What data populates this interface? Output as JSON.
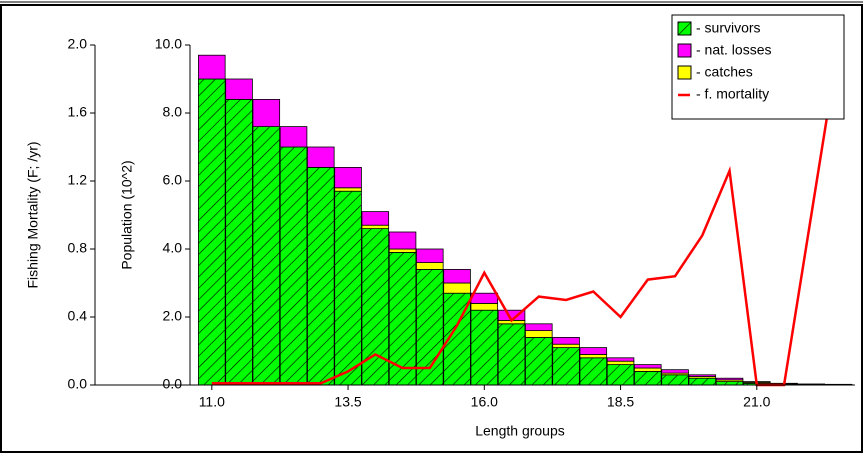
{
  "chart_data": {
    "type": "stacked-bar-line",
    "xlabel": "Length groups",
    "ylabel": "Population (10^2)",
    "y2label": "Fishing Mortality (F; /yr)",
    "x": [
      11.0,
      11.5,
      12.0,
      12.5,
      13.0,
      13.5,
      14.0,
      14.5,
      15.0,
      15.5,
      16.0,
      16.5,
      17.0,
      17.5,
      18.0,
      18.5,
      19.0,
      19.5,
      20.0,
      20.5,
      21.0,
      21.5,
      22.0,
      22.5
    ],
    "xlim": [
      10.6,
      22.8
    ],
    "xticks": [
      {
        "value": 11,
        "label": "11.0"
      },
      {
        "value": 13.5,
        "label": "13.5"
      },
      {
        "value": 16,
        "label": "16.0"
      },
      {
        "value": 18.5,
        "label": "18.5"
      },
      {
        "value": 21,
        "label": "21.0"
      }
    ],
    "ylim": [
      0,
      10
    ],
    "yticks": [
      {
        "value": 0,
        "label": "0.0"
      },
      {
        "value": 2,
        "label": "2.0"
      },
      {
        "value": 4,
        "label": "4.0"
      },
      {
        "value": 6,
        "label": "6.0"
      },
      {
        "value": 8,
        "label": "8.0"
      },
      {
        "value": 10,
        "label": "10.0"
      }
    ],
    "y2lim": [
      0,
      2
    ],
    "y2ticks": [
      {
        "value": 0,
        "label": "0.0"
      },
      {
        "value": 0.4,
        "label": "0.4"
      },
      {
        "value": 0.8,
        "label": "0.8"
      },
      {
        "value": 1.2,
        "label": "1.2"
      },
      {
        "value": 1.6,
        "label": "1.6"
      },
      {
        "value": 2,
        "label": "2.0"
      }
    ],
    "legend": "top-right",
    "series": [
      {
        "name": "- survivors",
        "color": "#00ff00",
        "hatch": true,
        "values": [
          9.0,
          8.4,
          7.6,
          7.0,
          6.4,
          5.7,
          4.6,
          3.9,
          3.4,
          2.7,
          2.2,
          1.8,
          1.4,
          1.1,
          0.8,
          0.6,
          0.4,
          0.3,
          0.2,
          0.1,
          0.05,
          0.03,
          0.02,
          0.01
        ]
      },
      {
        "name": "- catches",
        "color": "#ffff00",
        "values": [
          0,
          0,
          0,
          0,
          0,
          0.1,
          0.1,
          0.1,
          0.2,
          0.3,
          0.2,
          0.1,
          0.2,
          0.1,
          0.1,
          0.1,
          0.1,
          0.05,
          0.05,
          0.05,
          0.03,
          0,
          0,
          0
        ]
      },
      {
        "name": "- nat. losses",
        "color": "#ff00ff",
        "values": [
          0.7,
          0.6,
          0.8,
          0.6,
          0.6,
          0.6,
          0.4,
          0.5,
          0.4,
          0.4,
          0.3,
          0.3,
          0.2,
          0.2,
          0.2,
          0.1,
          0.1,
          0.1,
          0.05,
          0.05,
          0.02,
          0.02,
          0.01,
          0.01
        ]
      },
      {
        "name": "- f. mortality",
        "color": "#ff0000",
        "type": "line",
        "axis": "y2",
        "values": [
          0.01,
          0.01,
          0.01,
          0.01,
          0.01,
          0.08,
          0.18,
          0.1,
          0.1,
          0.35,
          0.66,
          0.38,
          0.52,
          0.5,
          0.55,
          0.4,
          0.62,
          0.64,
          0.88,
          1.26,
          0.0,
          0.0,
          1.0,
          2.0
        ]
      }
    ]
  }
}
